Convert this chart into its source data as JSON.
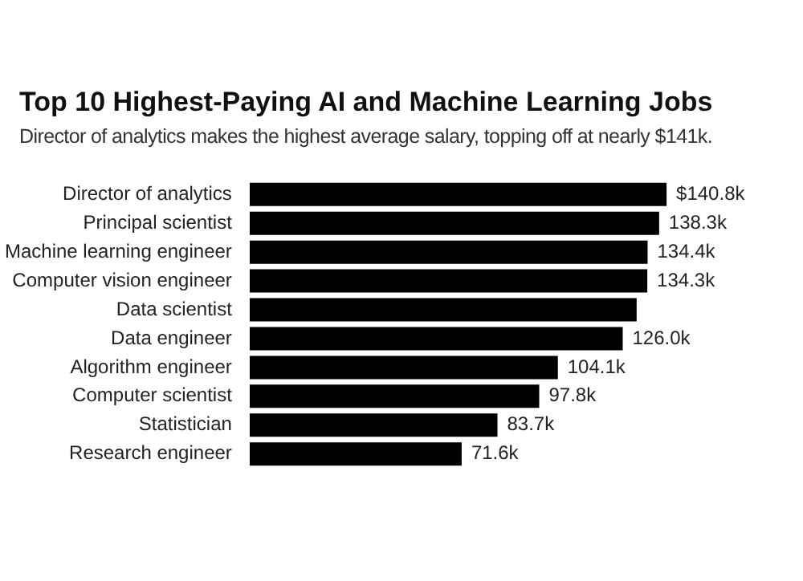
{
  "chart_data": {
    "type": "bar",
    "orientation": "horizontal",
    "title": "Top 10 Highest-Paying AI and Machine Learning Jobs",
    "subtitle": "Director of analytics makes the highest average salary, topping off at nearly $141k.",
    "categories": [
      "Director of analytics",
      "Principal scientist",
      "Machine learning engineer",
      "Computer vision engineer",
      "Data scientist",
      "Data engineer",
      "Algorithm engineer",
      "Computer scientist",
      "Statistician",
      "Research engineer"
    ],
    "values": [
      140.8,
      138.3,
      134.4,
      134.3,
      130.7,
      126.0,
      104.1,
      97.8,
      83.7,
      71.6
    ],
    "value_labels": [
      "$140.8k",
      "138.3k",
      "134.4k",
      "134.3k",
      null,
      "126.0k",
      "104.1k",
      "97.8k",
      "83.7k",
      "71.6k"
    ],
    "color": "#000000",
    "tick_labels": "y",
    "legend": false
  }
}
